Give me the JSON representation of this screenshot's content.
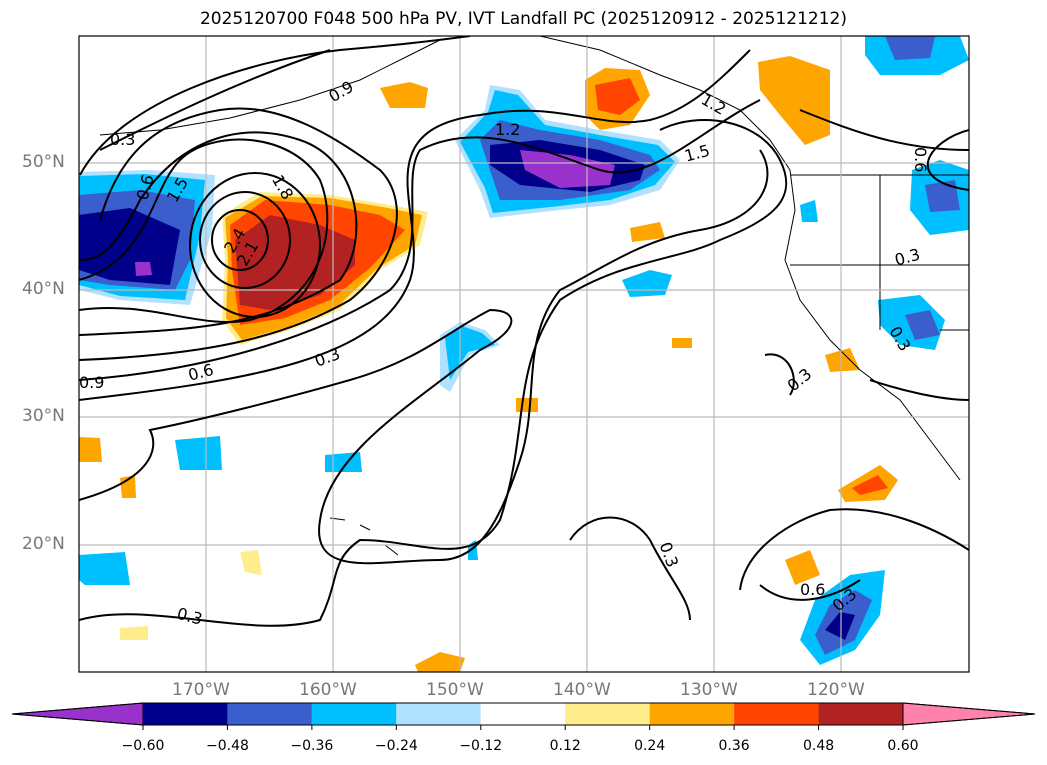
{
  "title": "2025120700 F048 500 hPa PV, IVT Landfall PC (2025120912 - 2025121212)",
  "lat_labels": [
    "50°N",
    "40°N",
    "30°N",
    "20°N"
  ],
  "lon_labels": [
    "170°W",
    "160°W",
    "150°W",
    "140°W",
    "130°W",
    "120°W"
  ],
  "contour_labels": [
    "0.3",
    "0.6",
    "0.9",
    "1.2",
    "1.5",
    "1.8",
    "2.1",
    "2.4",
    "0.3",
    "0.6",
    "0.9",
    "1.2",
    "1.5",
    "0.3",
    "0.3",
    "0.3",
    "0.6",
    "0.3",
    "0.3",
    "0.3",
    "0.6"
  ],
  "colorbar": {
    "ticks": [
      "−0.60",
      "−0.48",
      "−0.36",
      "−0.24",
      "−0.12",
      "0.12",
      "0.24",
      "0.36",
      "0.48",
      "0.60"
    ],
    "colors": [
      "#9932cc",
      "#00008b",
      "#3a5fcd",
      "#00bfff",
      "#b0e2ff",
      "#ffffff",
      "#ffec8b",
      "#ffa500",
      "#ff4500",
      "#b22222",
      "#ff82ab"
    ]
  }
}
